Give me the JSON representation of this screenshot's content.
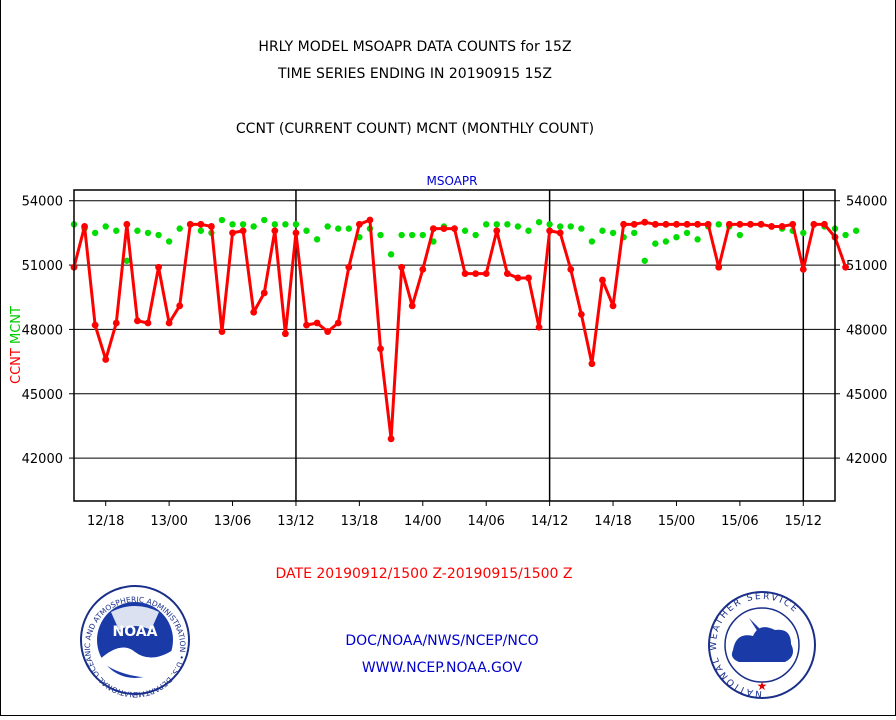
{
  "titles": {
    "line1": "HRLY MODEL MSOAPR DATA COUNTS for 15Z",
    "line2": "TIME SERIES ENDING IN 20190915 15Z",
    "line3": "CCNT (CURRENT COUNT) MCNT (MONTHLY COUNT)"
  },
  "footer": {
    "date_range": "DATE 20190912/1500 Z-20190915/1500 Z",
    "agency": "DOC/NOAA/NWS/NCEP/NCO",
    "url": "WWW.NCEP.NOAA.GOV"
  },
  "logos": {
    "noaa_text": "NOAA",
    "noaa_ring": "NATIONAL OCEANIC AND ATMOSPHERIC ADMINISTRATION • U.S. DEPARTMENT OF COMMERCE",
    "nws_ring": "NATIONAL WEATHER SERVICE"
  },
  "colors": {
    "ccnt": "#ff0000",
    "mcnt": "#00dd00",
    "title": "#000000",
    "footer_date": "#ff0000",
    "footer_links": "#0000cc",
    "series_title": "#0000cc"
  },
  "chart_data": {
    "type": "line",
    "title": "MSOAPR",
    "ylabel_parts": [
      "CCNT",
      "MCNT"
    ],
    "ylim": [
      40000,
      54500
    ],
    "yticks": [
      42000,
      45000,
      48000,
      51000,
      54000
    ],
    "ytick_labels": [
      "42000",
      "45000",
      "48000",
      "51000",
      "54000"
    ],
    "x_start_hour": 15,
    "x_end_hour": 87,
    "xticks": [
      {
        "hour": 18,
        "label": "12/18"
      },
      {
        "hour": 24,
        "label": "13/00"
      },
      {
        "hour": 30,
        "label": "13/06"
      },
      {
        "hour": 36,
        "label": "13/12"
      },
      {
        "hour": 42,
        "label": "13/18"
      },
      {
        "hour": 48,
        "label": "14/00"
      },
      {
        "hour": 54,
        "label": "14/06"
      },
      {
        "hour": 60,
        "label": "14/12"
      },
      {
        "hour": 66,
        "label": "14/18"
      },
      {
        "hour": 72,
        "label": "15/00"
      },
      {
        "hour": 78,
        "label": "15/06"
      },
      {
        "hour": 84,
        "label": "15/12"
      }
    ],
    "day_boundaries": [
      36,
      60,
      84
    ],
    "grid": true,
    "series": [
      {
        "name": "CCNT",
        "values": [
          50900,
          52800,
          48200,
          46600,
          48300,
          52900,
          48400,
          48300,
          50900,
          48300,
          49100,
          52900,
          52900,
          52800,
          47900,
          52500,
          52600,
          48800,
          49700,
          52600,
          47800,
          52500,
          48200,
          48300,
          47900,
          48300,
          50900,
          52900,
          53100,
          47100,
          42900,
          50900,
          49100,
          50800,
          52700,
          52700,
          52700,
          50600,
          50600,
          50600,
          52600,
          50600,
          50400,
          50400,
          48100,
          52600,
          52500,
          50800,
          48700,
          46400,
          50300,
          49100,
          52900,
          52900,
          53000,
          52900,
          52900,
          52900,
          52900,
          52900,
          52900,
          50900,
          52900,
          52900,
          52900,
          52900,
          52800,
          52800,
          52900,
          50800,
          52900,
          52900,
          52300,
          50900
        ]
      },
      {
        "name": "MCNT",
        "values": [
          52900,
          52700,
          52500,
          52800,
          52600,
          51200,
          52600,
          52500,
          52400,
          52100,
          52700,
          52900,
          52600,
          52500,
          53100,
          52900,
          52900,
          52800,
          53100,
          52900,
          52900,
          52900,
          52600,
          52200,
          52800,
          52700,
          52700,
          52300,
          52700,
          52400,
          51500,
          52400,
          52400,
          52400,
          52100,
          52800,
          52700,
          52600,
          52400,
          52900,
          52900,
          52900,
          52800,
          52600,
          53000,
          52900,
          52800,
          52800,
          52700,
          52100,
          52600,
          52500,
          52300,
          52500,
          51200,
          52000,
          52100,
          52300,
          52500,
          52200,
          52800,
          52900,
          52800,
          52400,
          52900,
          52900,
          52800,
          52700,
          52600,
          52500,
          52900,
          52800,
          52700,
          52400,
          52600
        ]
      }
    ]
  }
}
